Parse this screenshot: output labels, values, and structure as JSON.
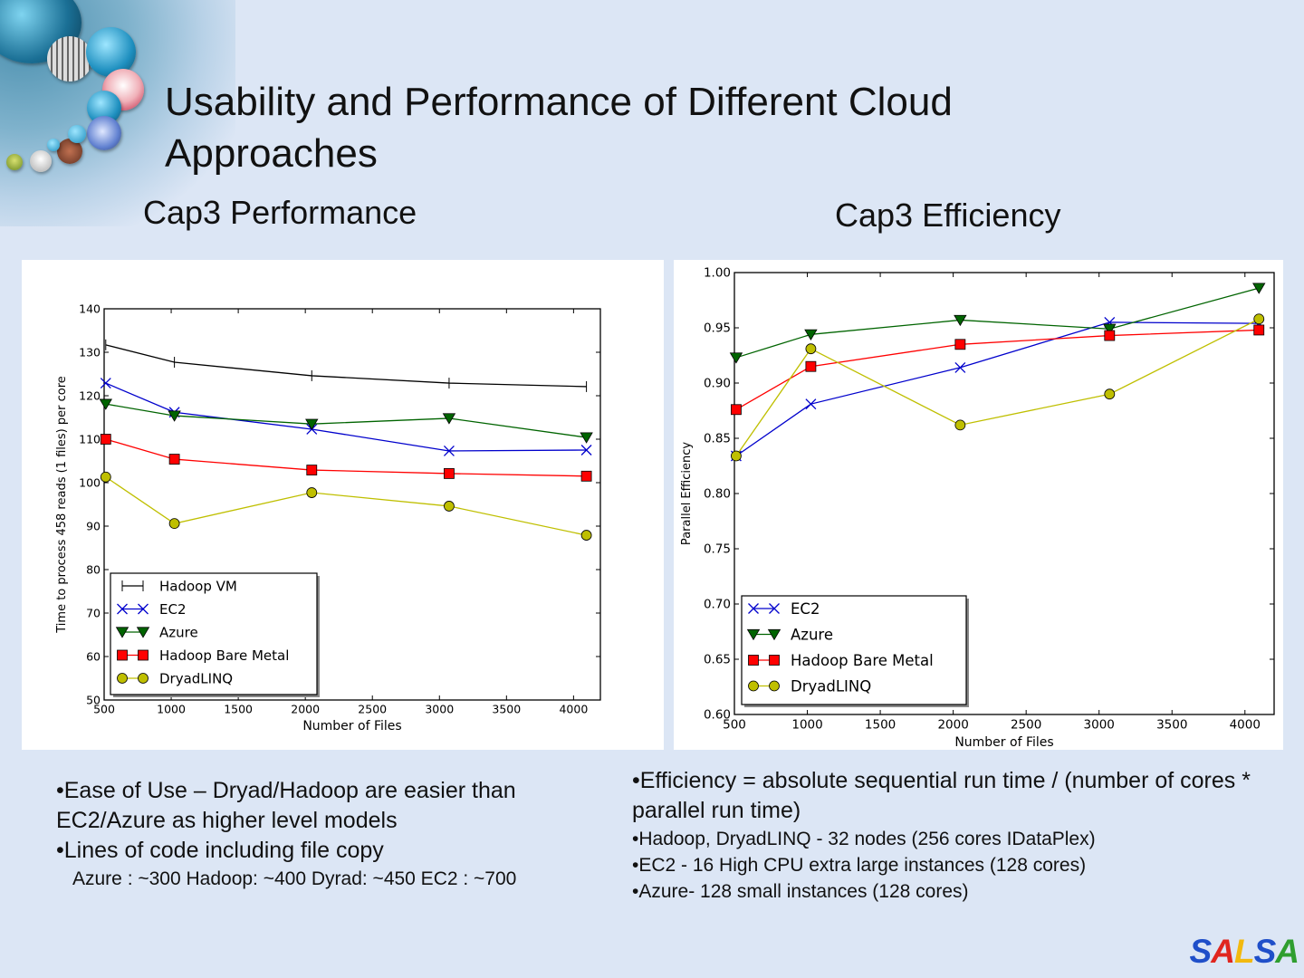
{
  "slide": {
    "title": "Usability and Performance of Different Cloud Approaches",
    "title_line1": "Usability and Performance of Different Cloud",
    "title_line2": "Approaches",
    "left_heading": "Cap3 Performance",
    "right_heading": "Cap3 Efficiency",
    "logo": {
      "text": "SALSA",
      "letters": [
        "S",
        "A",
        "L",
        "S",
        "A"
      ],
      "colors": [
        "#1f4fc9",
        "#e0261f",
        "#f2b90f",
        "#1f4fc9",
        "#2f9e2f"
      ]
    },
    "left_bullets": [
      {
        "text": "•Ease of Use – Dryad/Hadoop are easier than EC2/Azure as higher level models",
        "size": "large"
      },
      {
        "text": "•Lines of code including  file copy",
        "size": "large"
      },
      {
        "text": "Azure : ~300  Hadoop: ~400  Dyrad: ~450  EC2 : ~700",
        "size": "small",
        "indent": true
      }
    ],
    "right_bullets": [
      {
        "text": "•Efficiency = absolute sequential run time / (number of cores * parallel run time)",
        "size": "large"
      },
      {
        "text": "•Hadoop, DryadLINQ  - 32 nodes (256 cores IDataPlex)",
        "size": "small"
      },
      {
        "text": "•EC2 - 16 High CPU extra large instances (128 cores)",
        "size": "small"
      },
      {
        "text": "•Azure- 128 small instances (128 cores)",
        "size": "small"
      }
    ]
  },
  "chart_data": [
    {
      "type": "line",
      "title": "Cap3 Performance",
      "xlabel": "Number of Files",
      "ylabel": "Time to process 458 reads (1 files) per core",
      "x": [
        512,
        1024,
        2048,
        3072,
        4096
      ],
      "xlim": [
        500,
        4200
      ],
      "ylim": [
        50,
        140
      ],
      "xticks": [
        500,
        1000,
        1500,
        2000,
        2500,
        3000,
        3500,
        4000
      ],
      "yticks": [
        50,
        60,
        70,
        80,
        90,
        100,
        110,
        120,
        130,
        140
      ],
      "grid": false,
      "legend_position": "lower-left",
      "series": [
        {
          "name": "Hadoop VM",
          "color": "#000000",
          "marker": "vline",
          "values": [
            131.7,
            127.7,
            124.6,
            122.9,
            122.1
          ]
        },
        {
          "name": "EC2",
          "color": "#0000cc",
          "marker": "x",
          "values": [
            122.9,
            116.2,
            112.3,
            107.3,
            107.5
          ]
        },
        {
          "name": "Azure",
          "color": "#006400",
          "marker": "triangle-down",
          "values": [
            118.1,
            115.4,
            113.5,
            114.8,
            110.4
          ]
        },
        {
          "name": "Hadoop Bare Metal",
          "color": "#ff0000",
          "marker": "square",
          "values": [
            110.0,
            105.4,
            102.9,
            102.1,
            101.5
          ]
        },
        {
          "name": "DryadLINQ",
          "color": "#bfbf00",
          "marker": "circle",
          "values": [
            101.3,
            90.6,
            97.7,
            94.6,
            87.9
          ]
        }
      ]
    },
    {
      "type": "line",
      "title": "Cap3 Efficiency",
      "xlabel": "Number of Files",
      "ylabel": "Parallel Efficiency",
      "x": [
        512,
        1024,
        2048,
        3072,
        4096
      ],
      "xlim": [
        500,
        4200
      ],
      "ylim": [
        0.6,
        1.0
      ],
      "xticks": [
        500,
        1000,
        1500,
        2000,
        2500,
        3000,
        3500,
        4000
      ],
      "yticks": [
        0.6,
        0.65,
        0.7,
        0.75,
        0.8,
        0.85,
        0.9,
        0.95,
        1.0
      ],
      "grid": false,
      "legend_position": "lower-left",
      "series": [
        {
          "name": "EC2",
          "color": "#0000cc",
          "marker": "x",
          "values": [
            0.834,
            0.881,
            0.914,
            0.955,
            0.954
          ]
        },
        {
          "name": "Azure",
          "color": "#006400",
          "marker": "triangle-down",
          "values": [
            0.923,
            0.944,
            0.957,
            0.949,
            0.986
          ]
        },
        {
          "name": "Hadoop Bare Metal",
          "color": "#ff0000",
          "marker": "square",
          "values": [
            0.876,
            0.915,
            0.935,
            0.943,
            0.948
          ]
        },
        {
          "name": "DryadLINQ",
          "color": "#bfbf00",
          "marker": "circle",
          "values": [
            0.834,
            0.931,
            0.862,
            0.89,
            0.958
          ]
        }
      ]
    }
  ]
}
